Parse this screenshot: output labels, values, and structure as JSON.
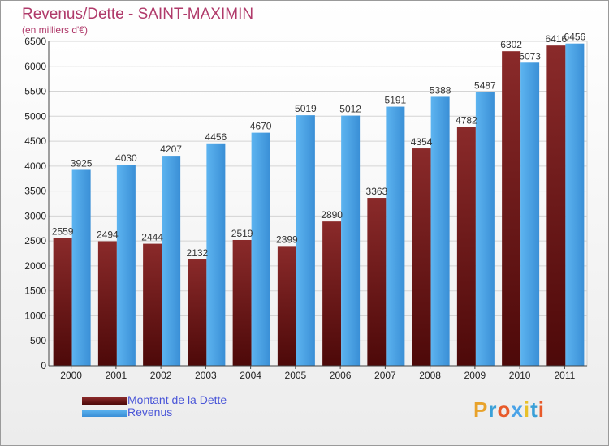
{
  "chart_data": {
    "type": "bar",
    "title": "Revenus/Dette - SAINT-MAXIMIN",
    "subtitle": "(en milliers d'€)",
    "categories": [
      "2000",
      "2001",
      "2002",
      "2003",
      "2004",
      "2005",
      "2006",
      "2007",
      "2008",
      "2009",
      "2010",
      "2011"
    ],
    "series": [
      {
        "name": "Montant de la Dette",
        "color": "#6b1a1a",
        "values": [
          2559,
          2494,
          2444,
          2132,
          2519,
          2399,
          2890,
          3363,
          4354,
          4782,
          6302,
          6416
        ]
      },
      {
        "name": "Revenus",
        "color": "#4aa3e8",
        "values": [
          3925,
          4030,
          4207,
          4456,
          4670,
          5019,
          5012,
          5191,
          5388,
          5487,
          6073,
          6456
        ]
      }
    ],
    "yticks": [
      0,
      500,
      1000,
      1500,
      2000,
      2500,
      3000,
      3500,
      4000,
      4500,
      5000,
      5500,
      6000,
      6500
    ],
    "ylim": [
      0,
      6500
    ],
    "grid": true,
    "legend_position": "bottom-left"
  },
  "logo_text": "Proxiti",
  "colors": {
    "title": "#b03a6a",
    "legend_text": "#4a56d8"
  }
}
